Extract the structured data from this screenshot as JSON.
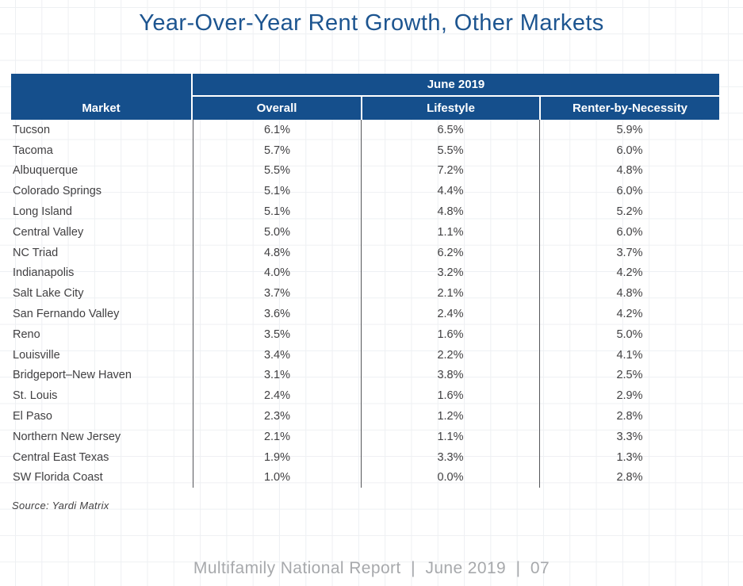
{
  "page": {
    "title": "Year-Over-Year Rent Growth, Other Markets",
    "source_note": "Source: Yardi Matrix",
    "footer": "Multifamily National Report  |  June 2019  |  07"
  },
  "colors": {
    "header_blue": "#154F8C",
    "title_blue": "#1D5590",
    "body_text": "#414042",
    "column_divider": "#55565A",
    "footer_gray": "#A7A9AC",
    "background_grid": "#EEF0F3"
  },
  "table": {
    "group_header": "June 2019",
    "columns": [
      "Market",
      "Overall",
      "Lifestyle",
      "Renter-by-Necessity"
    ],
    "rows": [
      {
        "market": "Tucson",
        "overall": "6.1%",
        "lifestyle": "6.5%",
        "rbn": "5.9%"
      },
      {
        "market": "Tacoma",
        "overall": "5.7%",
        "lifestyle": "5.5%",
        "rbn": "6.0%"
      },
      {
        "market": "Albuquerque",
        "overall": "5.5%",
        "lifestyle": "7.2%",
        "rbn": "4.8%"
      },
      {
        "market": "Colorado Springs",
        "overall": "5.1%",
        "lifestyle": "4.4%",
        "rbn": "6.0%"
      },
      {
        "market": "Long Island",
        "overall": "5.1%",
        "lifestyle": "4.8%",
        "rbn": "5.2%"
      },
      {
        "market": "Central Valley",
        "overall": "5.0%",
        "lifestyle": "1.1%",
        "rbn": "6.0%"
      },
      {
        "market": "NC Triad",
        "overall": "4.8%",
        "lifestyle": "6.2%",
        "rbn": "3.7%"
      },
      {
        "market": "Indianapolis",
        "overall": "4.0%",
        "lifestyle": "3.2%",
        "rbn": "4.2%"
      },
      {
        "market": "Salt Lake City",
        "overall": "3.7%",
        "lifestyle": "2.1%",
        "rbn": "4.8%"
      },
      {
        "market": "San Fernando Valley",
        "overall": "3.6%",
        "lifestyle": "2.4%",
        "rbn": "4.2%"
      },
      {
        "market": "Reno",
        "overall": "3.5%",
        "lifestyle": "1.6%",
        "rbn": "5.0%"
      },
      {
        "market": "Louisville",
        "overall": "3.4%",
        "lifestyle": "2.2%",
        "rbn": "4.1%"
      },
      {
        "market": "Bridgeport–New Haven",
        "overall": "3.1%",
        "lifestyle": "3.8%",
        "rbn": "2.5%"
      },
      {
        "market": "St. Louis",
        "overall": "2.4%",
        "lifestyle": "1.6%",
        "rbn": "2.9%"
      },
      {
        "market": "El Paso",
        "overall": "2.3%",
        "lifestyle": "1.2%",
        "rbn": "2.8%"
      },
      {
        "market": "Northern New Jersey",
        "overall": "2.1%",
        "lifestyle": "1.1%",
        "rbn": "3.3%"
      },
      {
        "market": "Central East Texas",
        "overall": "1.9%",
        "lifestyle": "3.3%",
        "rbn": "1.3%"
      },
      {
        "market": "SW Florida Coast",
        "overall": "1.0%",
        "lifestyle": "0.0%",
        "rbn": "2.8%"
      }
    ]
  }
}
